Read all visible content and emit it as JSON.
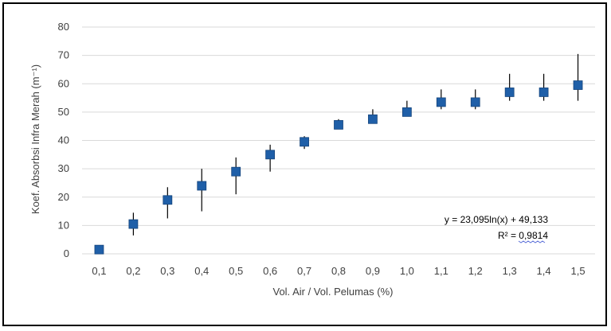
{
  "chart_data": {
    "type": "scatter",
    "title": "",
    "xlabel": "Vol. Air / Vol. Pelumas (%)",
    "ylabel": "Koef. Absorbsi Infra Merah (m⁻¹)",
    "x_tick_labels": [
      "0,1",
      "0,2",
      "0,3",
      "0,4",
      "0,5",
      "0,6",
      "0,7",
      "0,8",
      "0,9",
      "1,0",
      "1,1",
      "1,2",
      "1,3",
      "1,4",
      "1,5"
    ],
    "y_tick_labels": [
      "0",
      "10",
      "20",
      "30",
      "40",
      "50",
      "60",
      "70",
      "80"
    ],
    "ylim": [
      0,
      80
    ],
    "grid": true,
    "marker_color": "#1f5fa8",
    "series": [
      {
        "x": [
          0.1,
          0.2,
          0.3,
          0.4,
          0.5,
          0.6,
          0.7,
          0.8,
          0.9,
          1.0,
          1.1,
          1.2,
          1.3,
          1.4,
          1.5
        ],
        "y": [
          1.5,
          10.5,
          19,
          24,
          29,
          35,
          39.5,
          45.5,
          47.5,
          50,
          53.5,
          53.5,
          57,
          57,
          59.5
        ],
        "error_low": [
          0.5,
          6.5,
          12.5,
          15,
          21,
          29,
          37,
          44,
          46.5,
          48.5,
          51,
          51,
          54,
          54,
          54
        ],
        "error_high": [
          2.5,
          14.5,
          23.5,
          30,
          34,
          38.5,
          41.5,
          47.5,
          51,
          54,
          58,
          58,
          63.5,
          63.5,
          70.5
        ]
      }
    ],
    "annotations": {
      "equation": "y = 23,095ln(x) + 49,133",
      "r2_prefix": "R² = ",
      "r2_value": "0,9814"
    }
  }
}
